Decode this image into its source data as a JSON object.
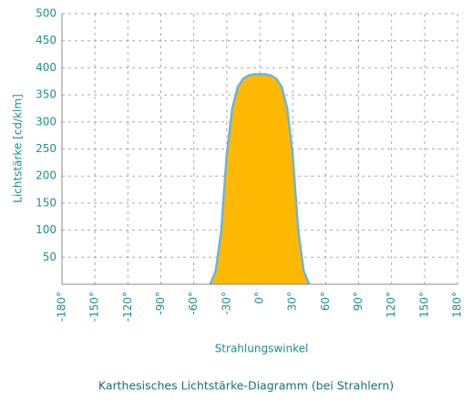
{
  "chart_data": {
    "type": "area",
    "title": "Karthesisches Lichtstärke-Diagramm (bei Strahlern)",
    "xlabel": "Strahlungswinkel",
    "ylabel": "Lichtstärke [cd/klm]",
    "x": [
      -45,
      -40,
      -35,
      -30,
      -25,
      -20,
      -15,
      -10,
      -5,
      0,
      5,
      10,
      15,
      20,
      25,
      30,
      35,
      40,
      45
    ],
    "values": [
      0,
      25,
      100,
      240,
      325,
      365,
      380,
      386,
      388,
      388,
      388,
      386,
      380,
      365,
      325,
      240,
      100,
      25,
      0
    ],
    "color": "#ffb800",
    "line_color": "#6cb4dc",
    "xlim": [
      -180,
      180
    ],
    "xticks": [
      {
        "value": -180,
        "label": "-180°"
      },
      {
        "value": -150,
        "label": "-150°"
      },
      {
        "value": -120,
        "label": "-120°"
      },
      {
        "value": -90,
        "label": "-90°"
      },
      {
        "value": -60,
        "label": "-60°"
      },
      {
        "value": -30,
        "label": "-30°"
      },
      {
        "value": 0,
        "label": "0°"
      },
      {
        "value": 30,
        "label": "30°"
      },
      {
        "value": 60,
        "label": "60°"
      },
      {
        "value": 90,
        "label": "90°"
      },
      {
        "value": 120,
        "label": "120°"
      },
      {
        "value": 150,
        "label": "150°"
      },
      {
        "value": 180,
        "label": "180°"
      }
    ],
    "ylim": [
      0,
      500
    ],
    "yticks": [
      50,
      100,
      150,
      200,
      250,
      300,
      350,
      400,
      450,
      500
    ],
    "grid": true
  }
}
